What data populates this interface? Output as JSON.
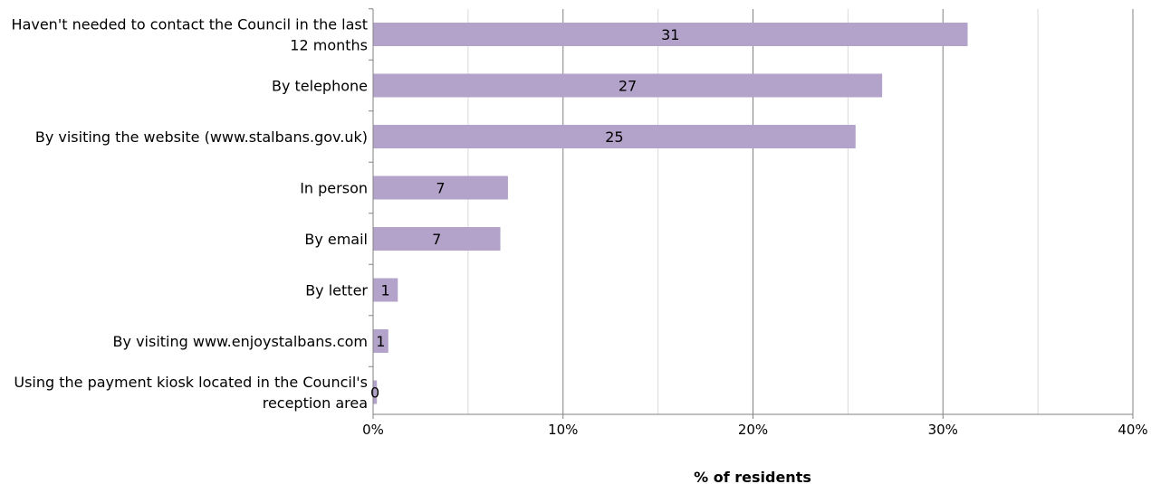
{
  "chart_data": {
    "type": "bar",
    "orientation": "horizontal",
    "categories": [
      [
        "Haven't needed to contact the Council in the last",
        "12 months"
      ],
      [
        "By telephone"
      ],
      [
        "By visiting the website (www.stalbans.gov.uk)"
      ],
      [
        "In person"
      ],
      [
        "By email"
      ],
      [
        "By letter"
      ],
      [
        "By visiting www.enjoystalbans.com"
      ],
      [
        "Using the payment kiosk located in the Council's",
        "reception area"
      ]
    ],
    "values": [
      31.3,
      26.8,
      25.4,
      7.1,
      6.7,
      1.3,
      0.8,
      0.2
    ],
    "data_labels": [
      "31",
      "27",
      "25",
      "7",
      "7",
      "1",
      "1",
      "0"
    ],
    "x_ticks": [
      0,
      10,
      20,
      30,
      40
    ],
    "x_tick_labels": [
      "0%",
      "10%",
      "20%",
      "30%",
      "40%"
    ],
    "xlim": [
      0,
      40
    ],
    "xlabel": "% of residents",
    "ylabel": "",
    "title": "",
    "grid": {
      "major": true,
      "minor": true,
      "minor_ticks": [
        5,
        15,
        25,
        35
      ]
    },
    "legend": "none",
    "colors": {
      "bar": "#b3a2c9",
      "major_grid": "#808080",
      "minor_grid": "#d9d9d9",
      "axis": "#808080"
    }
  }
}
